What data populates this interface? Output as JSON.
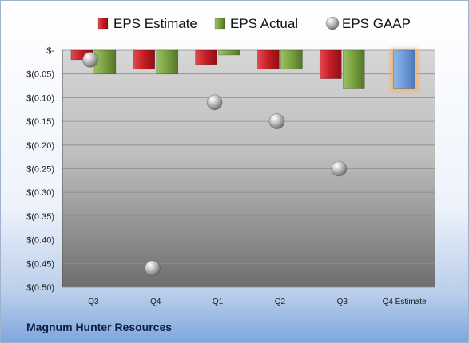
{
  "company": "Magnum Hunter Resources",
  "chart_data": {
    "type": "bar",
    "categories": [
      "Q3",
      "Q4",
      "Q1",
      "Q2",
      "Q3",
      "Q4 Estimate"
    ],
    "series": [
      {
        "name": "EPS Estimate",
        "type": "bar",
        "color": "#d0202a",
        "values": [
          -0.02,
          -0.04,
          -0.03,
          -0.04,
          -0.06,
          null
        ]
      },
      {
        "name": "EPS Actual",
        "type": "bar",
        "color": "#7fa646",
        "values": [
          -0.05,
          -0.05,
          -0.01,
          -0.04,
          -0.08,
          null
        ]
      },
      {
        "name": "EPS GAAP",
        "type": "scatter",
        "color": "#a8a8a8",
        "values": [
          -0.02,
          -0.46,
          -0.11,
          -0.15,
          -0.25,
          null
        ]
      },
      {
        "name": "",
        "type": "bar",
        "color": "#6f9fdc",
        "highlight": "#f6b26b",
        "values": [
          null,
          null,
          null,
          null,
          null,
          -0.08
        ]
      }
    ],
    "ylim": [
      -0.5,
      0
    ],
    "yticks": [
      "$-",
      "$(0.05)",
      "$(0.10)",
      "$(0.15)",
      "$(0.20)",
      "$(0.25)",
      "$(0.30)",
      "$(0.35)",
      "$(0.40)",
      "$(0.45)",
      "$(0.50)"
    ],
    "ytick_values": [
      0,
      -0.05,
      -0.1,
      -0.15,
      -0.2,
      -0.25,
      -0.3,
      -0.35,
      -0.4,
      -0.45,
      -0.5
    ],
    "grid": true,
    "legend": "top",
    "legend_entries": [
      "EPS Estimate",
      "EPS Actual",
      "EPS GAAP"
    ],
    "title": "",
    "xlabel": "",
    "ylabel": ""
  }
}
